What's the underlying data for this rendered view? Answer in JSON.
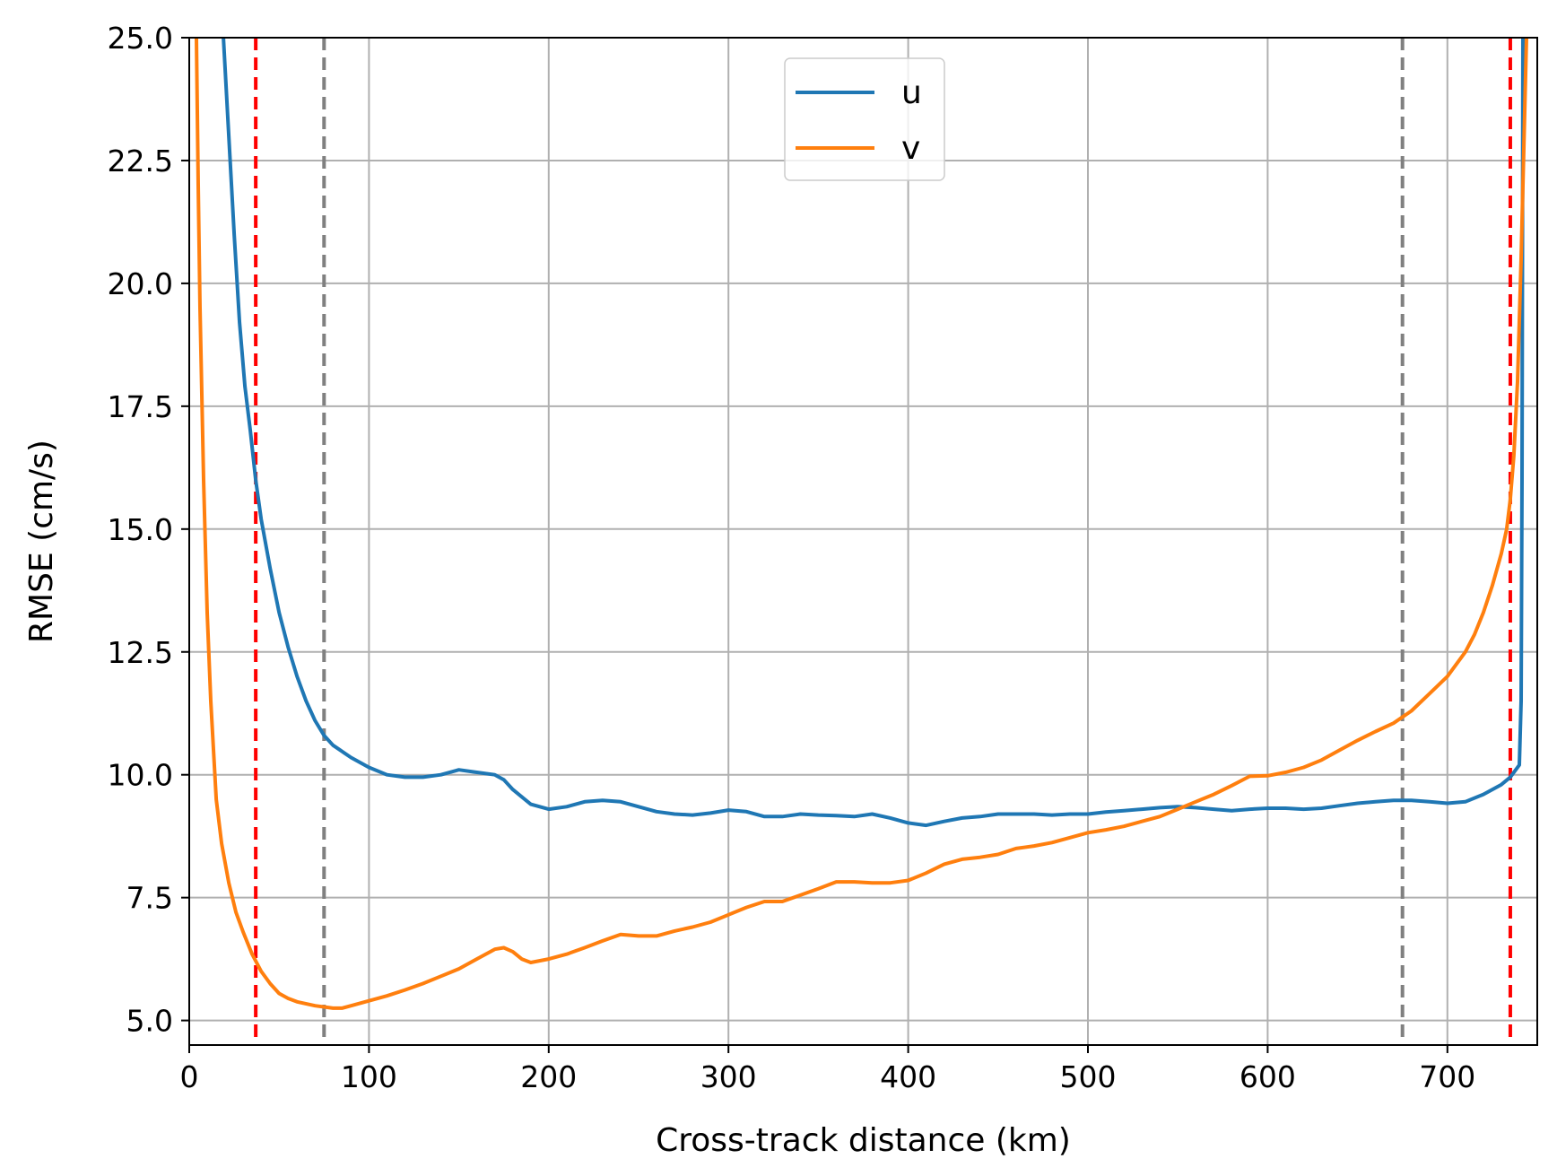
{
  "chart_data": {
    "type": "line",
    "title": "",
    "xlabel": "Cross-track distance (km)",
    "ylabel": "RMSE (cm/s)",
    "xlim": [
      0,
      750
    ],
    "ylim": [
      4.5,
      25.0
    ],
    "x_ticks": [
      0,
      100,
      200,
      300,
      400,
      500,
      600,
      700
    ],
    "x_tick_labels": [
      "0",
      "100",
      "200",
      "300",
      "400",
      "500",
      "600",
      "700"
    ],
    "y_ticks": [
      5.0,
      7.5,
      10.0,
      12.5,
      15.0,
      17.5,
      20.0,
      22.5,
      25.0
    ],
    "y_tick_labels": [
      "5.0",
      "7.5",
      "10.0",
      "12.5",
      "15.0",
      "17.5",
      "20.0",
      "22.5",
      "25.0"
    ],
    "grid": true,
    "legend_position": "top-center",
    "series": [
      {
        "name": "u",
        "color": "#1f77b4",
        "points": [
          [
            19,
            25.0
          ],
          [
            22,
            23.0
          ],
          [
            25,
            21.0
          ],
          [
            28,
            19.2
          ],
          [
            31,
            17.9
          ],
          [
            34,
            17.0
          ],
          [
            37,
            16.0
          ],
          [
            40,
            15.2
          ],
          [
            45,
            14.2
          ],
          [
            50,
            13.3
          ],
          [
            55,
            12.6
          ],
          [
            60,
            12.0
          ],
          [
            65,
            11.5
          ],
          [
            70,
            11.1
          ],
          [
            75,
            10.8
          ],
          [
            80,
            10.6
          ],
          [
            90,
            10.35
          ],
          [
            100,
            10.15
          ],
          [
            110,
            10.0
          ],
          [
            120,
            9.95
          ],
          [
            130,
            9.95
          ],
          [
            140,
            10.0
          ],
          [
            150,
            10.1
          ],
          [
            160,
            10.05
          ],
          [
            170,
            10.0
          ],
          [
            175,
            9.9
          ],
          [
            180,
            9.7
          ],
          [
            190,
            9.4
          ],
          [
            200,
            9.3
          ],
          [
            210,
            9.35
          ],
          [
            220,
            9.45
          ],
          [
            230,
            9.48
          ],
          [
            240,
            9.45
          ],
          [
            250,
            9.35
          ],
          [
            260,
            9.25
          ],
          [
            270,
            9.2
          ],
          [
            280,
            9.18
          ],
          [
            290,
            9.22
          ],
          [
            300,
            9.28
          ],
          [
            310,
            9.25
          ],
          [
            320,
            9.15
          ],
          [
            330,
            9.15
          ],
          [
            340,
            9.2
          ],
          [
            350,
            9.18
          ],
          [
            360,
            9.17
          ],
          [
            370,
            9.15
          ],
          [
            380,
            9.2
          ],
          [
            390,
            9.12
          ],
          [
            400,
            9.02
          ],
          [
            410,
            8.97
          ],
          [
            420,
            9.05
          ],
          [
            430,
            9.12
          ],
          [
            440,
            9.15
          ],
          [
            450,
            9.2
          ],
          [
            460,
            9.2
          ],
          [
            470,
            9.2
          ],
          [
            480,
            9.18
          ],
          [
            490,
            9.2
          ],
          [
            500,
            9.2
          ],
          [
            510,
            9.24
          ],
          [
            520,
            9.27
          ],
          [
            530,
            9.3
          ],
          [
            540,
            9.33
          ],
          [
            550,
            9.35
          ],
          [
            560,
            9.33
          ],
          [
            570,
            9.3
          ],
          [
            580,
            9.27
          ],
          [
            590,
            9.3
          ],
          [
            600,
            9.32
          ],
          [
            610,
            9.32
          ],
          [
            620,
            9.3
          ],
          [
            630,
            9.32
          ],
          [
            640,
            9.37
          ],
          [
            650,
            9.42
          ],
          [
            660,
            9.45
          ],
          [
            670,
            9.48
          ],
          [
            680,
            9.48
          ],
          [
            690,
            9.45
          ],
          [
            700,
            9.42
          ],
          [
            710,
            9.45
          ],
          [
            720,
            9.6
          ],
          [
            730,
            9.8
          ],
          [
            735,
            9.95
          ],
          [
            738,
            10.1
          ],
          [
            740,
            10.2
          ],
          [
            741,
            11.5
          ],
          [
            741.5,
            16.0
          ],
          [
            742,
            25.0
          ]
        ]
      },
      {
        "name": "v",
        "color": "#ff7f0e",
        "points": [
          [
            4,
            25.0
          ],
          [
            5,
            22.0
          ],
          [
            6,
            19.5
          ],
          [
            8,
            16.0
          ],
          [
            10,
            13.3
          ],
          [
            12,
            11.5
          ],
          [
            15,
            9.5
          ],
          [
            18,
            8.6
          ],
          [
            22,
            7.8
          ],
          [
            26,
            7.2
          ],
          [
            30,
            6.8
          ],
          [
            35,
            6.35
          ],
          [
            40,
            6.0
          ],
          [
            45,
            5.75
          ],
          [
            50,
            5.55
          ],
          [
            55,
            5.45
          ],
          [
            60,
            5.38
          ],
          [
            70,
            5.3
          ],
          [
            80,
            5.25
          ],
          [
            85,
            5.25
          ],
          [
            90,
            5.3
          ],
          [
            100,
            5.4
          ],
          [
            110,
            5.5
          ],
          [
            120,
            5.62
          ],
          [
            130,
            5.75
          ],
          [
            140,
            5.9
          ],
          [
            150,
            6.05
          ],
          [
            160,
            6.25
          ],
          [
            170,
            6.45
          ],
          [
            175,
            6.48
          ],
          [
            180,
            6.4
          ],
          [
            185,
            6.25
          ],
          [
            190,
            6.18
          ],
          [
            200,
            6.25
          ],
          [
            210,
            6.35
          ],
          [
            220,
            6.48
          ],
          [
            230,
            6.62
          ],
          [
            240,
            6.75
          ],
          [
            250,
            6.72
          ],
          [
            260,
            6.72
          ],
          [
            270,
            6.82
          ],
          [
            280,
            6.9
          ],
          [
            290,
            7.0
          ],
          [
            300,
            7.15
          ],
          [
            310,
            7.3
          ],
          [
            320,
            7.42
          ],
          [
            330,
            7.42
          ],
          [
            340,
            7.55
          ],
          [
            350,
            7.68
          ],
          [
            360,
            7.82
          ],
          [
            370,
            7.82
          ],
          [
            380,
            7.8
          ],
          [
            390,
            7.8
          ],
          [
            400,
            7.85
          ],
          [
            410,
            8.0
          ],
          [
            420,
            8.18
          ],
          [
            430,
            8.28
          ],
          [
            440,
            8.32
          ],
          [
            450,
            8.38
          ],
          [
            460,
            8.5
          ],
          [
            470,
            8.55
          ],
          [
            480,
            8.62
          ],
          [
            490,
            8.72
          ],
          [
            500,
            8.82
          ],
          [
            510,
            8.88
          ],
          [
            520,
            8.95
          ],
          [
            530,
            9.05
          ],
          [
            540,
            9.15
          ],
          [
            550,
            9.3
          ],
          [
            560,
            9.45
          ],
          [
            570,
            9.6
          ],
          [
            580,
            9.78
          ],
          [
            590,
            9.97
          ],
          [
            600,
            9.98
          ],
          [
            610,
            10.05
          ],
          [
            620,
            10.15
          ],
          [
            630,
            10.3
          ],
          [
            640,
            10.5
          ],
          [
            650,
            10.7
          ],
          [
            660,
            10.88
          ],
          [
            670,
            11.05
          ],
          [
            680,
            11.3
          ],
          [
            690,
            11.65
          ],
          [
            700,
            12.0
          ],
          [
            710,
            12.5
          ],
          [
            715,
            12.85
          ],
          [
            720,
            13.3
          ],
          [
            725,
            13.85
          ],
          [
            730,
            14.5
          ],
          [
            733,
            15.0
          ],
          [
            735,
            15.6
          ],
          [
            737,
            16.5
          ],
          [
            739,
            18.0
          ],
          [
            741,
            20.5
          ],
          [
            743,
            23.5
          ],
          [
            744,
            25.0
          ]
        ]
      }
    ],
    "reference_lines": [
      {
        "x": 37,
        "color": "#ff0000",
        "style": "dashed"
      },
      {
        "x": 75,
        "color": "#808080",
        "style": "dashed"
      },
      {
        "x": 675,
        "color": "#808080",
        "style": "dashed"
      },
      {
        "x": 735,
        "color": "#ff0000",
        "style": "dashed"
      }
    ],
    "grid_color": "#b0b0b0"
  }
}
